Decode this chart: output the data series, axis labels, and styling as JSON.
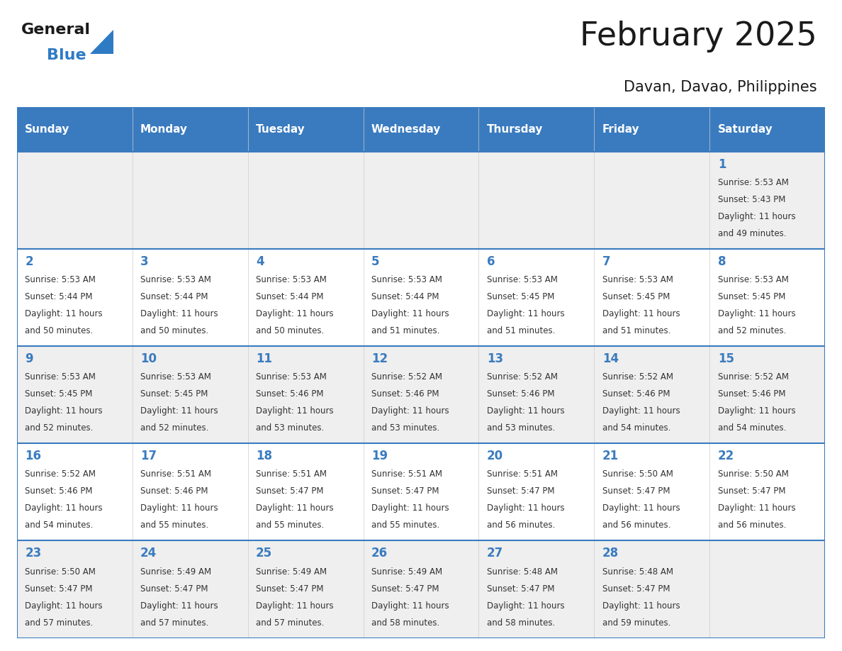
{
  "title": "February 2025",
  "subtitle": "Davan, Davao, Philippines",
  "header_bg_color": "#3a7bbf",
  "header_text_color": "#ffffff",
  "row_colors": [
    "#efefef",
    "#ffffff",
    "#efefef",
    "#ffffff",
    "#efefef"
  ],
  "day_names": [
    "Sunday",
    "Monday",
    "Tuesday",
    "Wednesday",
    "Thursday",
    "Friday",
    "Saturday"
  ],
  "title_color": "#1a1a1a",
  "subtitle_color": "#1a1a1a",
  "day_number_color": "#3a7bbf",
  "cell_text_color": "#333333",
  "logo_general_color": "#1a1a1a",
  "logo_blue_color": "#2e7bc4",
  "border_color": "#3a7bbf",
  "calendar_data": [
    [
      null,
      null,
      null,
      null,
      null,
      null,
      {
        "day": 1,
        "sunrise": "5:53 AM",
        "sunset": "5:43 PM",
        "daylight_line1": "Daylight: 11 hours",
        "daylight_line2": "and 49 minutes."
      }
    ],
    [
      {
        "day": 2,
        "sunrise": "5:53 AM",
        "sunset": "5:44 PM",
        "daylight_line1": "Daylight: 11 hours",
        "daylight_line2": "and 50 minutes."
      },
      {
        "day": 3,
        "sunrise": "5:53 AM",
        "sunset": "5:44 PM",
        "daylight_line1": "Daylight: 11 hours",
        "daylight_line2": "and 50 minutes."
      },
      {
        "day": 4,
        "sunrise": "5:53 AM",
        "sunset": "5:44 PM",
        "daylight_line1": "Daylight: 11 hours",
        "daylight_line2": "and 50 minutes."
      },
      {
        "day": 5,
        "sunrise": "5:53 AM",
        "sunset": "5:44 PM",
        "daylight_line1": "Daylight: 11 hours",
        "daylight_line2": "and 51 minutes."
      },
      {
        "day": 6,
        "sunrise": "5:53 AM",
        "sunset": "5:45 PM",
        "daylight_line1": "Daylight: 11 hours",
        "daylight_line2": "and 51 minutes."
      },
      {
        "day": 7,
        "sunrise": "5:53 AM",
        "sunset": "5:45 PM",
        "daylight_line1": "Daylight: 11 hours",
        "daylight_line2": "and 51 minutes."
      },
      {
        "day": 8,
        "sunrise": "5:53 AM",
        "sunset": "5:45 PM",
        "daylight_line1": "Daylight: 11 hours",
        "daylight_line2": "and 52 minutes."
      }
    ],
    [
      {
        "day": 9,
        "sunrise": "5:53 AM",
        "sunset": "5:45 PM",
        "daylight_line1": "Daylight: 11 hours",
        "daylight_line2": "and 52 minutes."
      },
      {
        "day": 10,
        "sunrise": "5:53 AM",
        "sunset": "5:45 PM",
        "daylight_line1": "Daylight: 11 hours",
        "daylight_line2": "and 52 minutes."
      },
      {
        "day": 11,
        "sunrise": "5:53 AM",
        "sunset": "5:46 PM",
        "daylight_line1": "Daylight: 11 hours",
        "daylight_line2": "and 53 minutes."
      },
      {
        "day": 12,
        "sunrise": "5:52 AM",
        "sunset": "5:46 PM",
        "daylight_line1": "Daylight: 11 hours",
        "daylight_line2": "and 53 minutes."
      },
      {
        "day": 13,
        "sunrise": "5:52 AM",
        "sunset": "5:46 PM",
        "daylight_line1": "Daylight: 11 hours",
        "daylight_line2": "and 53 minutes."
      },
      {
        "day": 14,
        "sunrise": "5:52 AM",
        "sunset": "5:46 PM",
        "daylight_line1": "Daylight: 11 hours",
        "daylight_line2": "and 54 minutes."
      },
      {
        "day": 15,
        "sunrise": "5:52 AM",
        "sunset": "5:46 PM",
        "daylight_line1": "Daylight: 11 hours",
        "daylight_line2": "and 54 minutes."
      }
    ],
    [
      {
        "day": 16,
        "sunrise": "5:52 AM",
        "sunset": "5:46 PM",
        "daylight_line1": "Daylight: 11 hours",
        "daylight_line2": "and 54 minutes."
      },
      {
        "day": 17,
        "sunrise": "5:51 AM",
        "sunset": "5:46 PM",
        "daylight_line1": "Daylight: 11 hours",
        "daylight_line2": "and 55 minutes."
      },
      {
        "day": 18,
        "sunrise": "5:51 AM",
        "sunset": "5:47 PM",
        "daylight_line1": "Daylight: 11 hours",
        "daylight_line2": "and 55 minutes."
      },
      {
        "day": 19,
        "sunrise": "5:51 AM",
        "sunset": "5:47 PM",
        "daylight_line1": "Daylight: 11 hours",
        "daylight_line2": "and 55 minutes."
      },
      {
        "day": 20,
        "sunrise": "5:51 AM",
        "sunset": "5:47 PM",
        "daylight_line1": "Daylight: 11 hours",
        "daylight_line2": "and 56 minutes."
      },
      {
        "day": 21,
        "sunrise": "5:50 AM",
        "sunset": "5:47 PM",
        "daylight_line1": "Daylight: 11 hours",
        "daylight_line2": "and 56 minutes."
      },
      {
        "day": 22,
        "sunrise": "5:50 AM",
        "sunset": "5:47 PM",
        "daylight_line1": "Daylight: 11 hours",
        "daylight_line2": "and 56 minutes."
      }
    ],
    [
      {
        "day": 23,
        "sunrise": "5:50 AM",
        "sunset": "5:47 PM",
        "daylight_line1": "Daylight: 11 hours",
        "daylight_line2": "and 57 minutes."
      },
      {
        "day": 24,
        "sunrise": "5:49 AM",
        "sunset": "5:47 PM",
        "daylight_line1": "Daylight: 11 hours",
        "daylight_line2": "and 57 minutes."
      },
      {
        "day": 25,
        "sunrise": "5:49 AM",
        "sunset": "5:47 PM",
        "daylight_line1": "Daylight: 11 hours",
        "daylight_line2": "and 57 minutes."
      },
      {
        "day": 26,
        "sunrise": "5:49 AM",
        "sunset": "5:47 PM",
        "daylight_line1": "Daylight: 11 hours",
        "daylight_line2": "and 58 minutes."
      },
      {
        "day": 27,
        "sunrise": "5:48 AM",
        "sunset": "5:47 PM",
        "daylight_line1": "Daylight: 11 hours",
        "daylight_line2": "and 58 minutes."
      },
      {
        "day": 28,
        "sunrise": "5:48 AM",
        "sunset": "5:47 PM",
        "daylight_line1": "Daylight: 11 hours",
        "daylight_line2": "and 59 minutes."
      },
      null
    ]
  ]
}
